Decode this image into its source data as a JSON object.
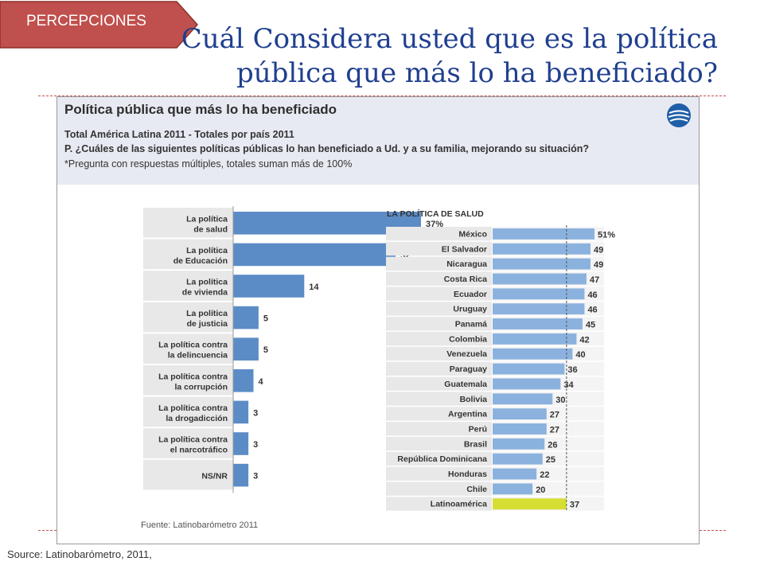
{
  "tag": {
    "label": "PERCEPCIONES",
    "color": "#c0504d"
  },
  "slide_title": {
    "line1": "Cuál Considera usted que es la política",
    "line2": "pública que más lo ha beneficiado?"
  },
  "figure": {
    "title": "Política pública que más lo ha beneficiado",
    "sub1": "Total América Latina 2011 - Totales por país 2011",
    "sub2": "P. ¿Cuáles de las siguientes políticas públicas lo han beneficiado a Ud. y a su familia, mejorando su situación?",
    "sub3": "*Pregunta con respuestas múltiples, totales suman más de 100%",
    "source": "Fuente: Latinobarómetro 2011"
  },
  "source_note": "Source: Latinobarómetro, 2011,",
  "colors": {
    "bar_dark": "#5b8cc6",
    "bar_light": "#8bb2de",
    "highlight": "#d6de33",
    "row_bg": "#e8e8e8"
  },
  "chart_data": [
    {
      "type": "bar",
      "orientation": "horizontal",
      "title": "",
      "categories": [
        [
          "La política",
          "de salud"
        ],
        [
          "La política",
          "de Educación"
        ],
        [
          "La política",
          "de vivienda"
        ],
        [
          "La política",
          "de justicia"
        ],
        [
          "La política contra",
          "la delincuencia"
        ],
        [
          "La política contra",
          "la corrupción"
        ],
        [
          "La política contra",
          "la drogadicción"
        ],
        [
          "La política contra",
          "el narcotráfico"
        ],
        [
          "NS/NR"
        ]
      ],
      "values": [
        37,
        32,
        14,
        5,
        5,
        4,
        3,
        3,
        3
      ],
      "value_labels": [
        "37%",
        "32",
        "14",
        "5",
        "5",
        "4",
        "3",
        "3",
        "3"
      ],
      "xlim": [
        0,
        40
      ]
    },
    {
      "type": "bar",
      "orientation": "horizontal",
      "title": "LA POLÍTICA DE SALUD",
      "categories": [
        "México",
        "El Salvador",
        "Nicaragua",
        "Costa Rica",
        "Ecuador",
        "Uruguay",
        "Panamá",
        "Colombia",
        "Venezuela",
        "Paraguay",
        "Guatemala",
        "Bolivia",
        "Argentina",
        "Perú",
        "Brasil",
        "República Dominicana",
        "Honduras",
        "Chile",
        "Latinoamérica"
      ],
      "values": [
        51,
        49,
        49,
        47,
        46,
        46,
        45,
        42,
        40,
        36,
        34,
        30,
        27,
        27,
        26,
        25,
        22,
        20,
        37
      ],
      "value_labels": [
        "51%",
        "49",
        "49",
        "47",
        "46",
        "46",
        "45",
        "42",
        "40",
        "36",
        "34",
        "30",
        "27",
        "27",
        "26",
        "25",
        "22",
        "20",
        "37"
      ],
      "reference_line": 37,
      "xlim": [
        0,
        55
      ]
    }
  ]
}
